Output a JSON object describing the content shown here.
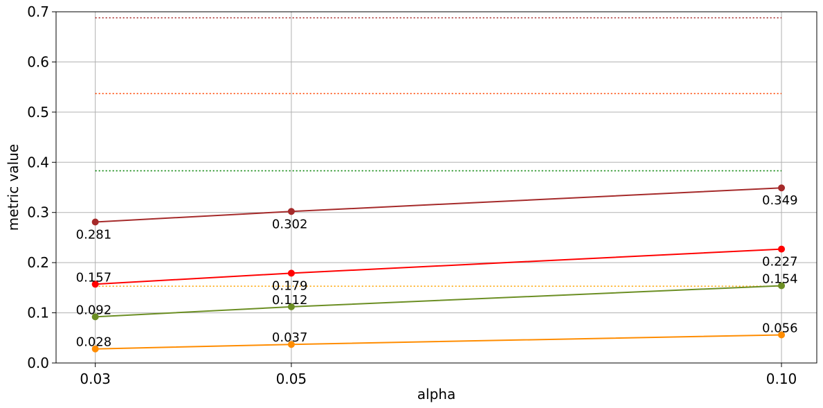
{
  "chart_data": {
    "type": "line",
    "xlabel": "alpha",
    "ylabel": "metric value",
    "x": [
      0.03,
      0.05,
      0.1
    ],
    "x_tick_labels": [
      "0.03",
      "0.05",
      "0.10"
    ],
    "xlim": [
      0.026,
      0.1036
    ],
    "ylim": [
      0.0,
      0.7
    ],
    "y_ticks": [
      0.0,
      0.1,
      0.2,
      0.3,
      0.4,
      0.5,
      0.6,
      0.7
    ],
    "y_tick_labels": [
      "0.0",
      "0.1",
      "0.2",
      "0.3",
      "0.4",
      "0.5",
      "0.6",
      "0.7"
    ],
    "grid": true,
    "series": [
      {
        "color": "#a52a2a",
        "values": [
          0.281,
          0.302,
          0.349
        ],
        "labels": [
          "0.281",
          "0.302",
          "0.349"
        ],
        "label_position": "below"
      },
      {
        "color": "#ff0000",
        "values": [
          0.157,
          0.179,
          0.227
        ],
        "labels": [
          "0.157",
          "0.179",
          "0.227"
        ],
        "label_position": [
          "above",
          "below",
          "below"
        ]
      },
      {
        "color": "#6b8e23",
        "values": [
          0.092,
          0.112,
          0.154
        ],
        "labels": [
          "0.092",
          "0.112",
          "0.154"
        ],
        "label_position": "above"
      },
      {
        "color": "#ff8c00",
        "values": [
          0.028,
          0.037,
          0.056
        ],
        "labels": [
          "0.028",
          "0.037",
          "0.056"
        ],
        "label_position": "above"
      }
    ],
    "reference_lines": [
      {
        "y": 0.688,
        "color": "#a52a2a",
        "style": "dotted"
      },
      {
        "y": 0.537,
        "color": "#ff4500",
        "style": "dotted"
      },
      {
        "y": 0.383,
        "color": "#008000",
        "style": "dotted"
      },
      {
        "y": 0.153,
        "color": "#ffa500",
        "style": "dotted"
      }
    ]
  }
}
